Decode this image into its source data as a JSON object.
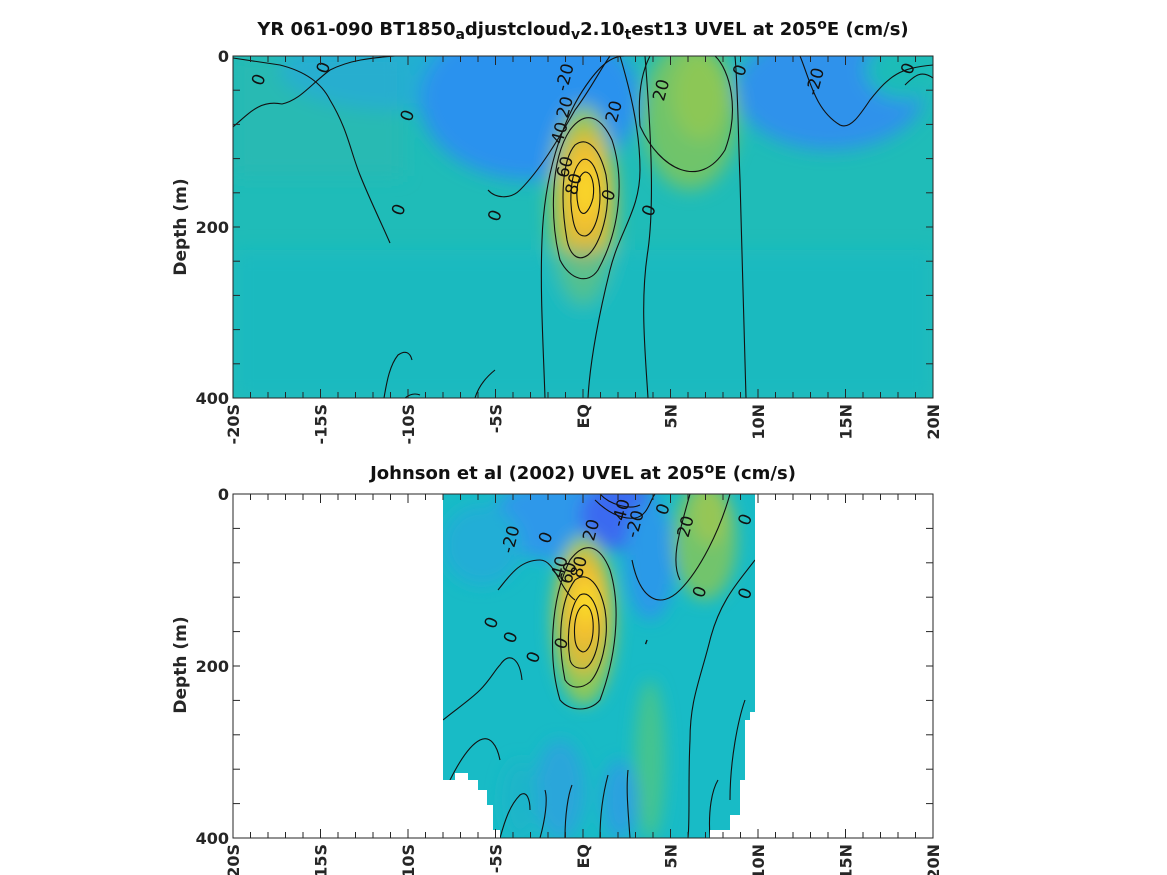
{
  "chart_data": [
    {
      "type": "heatmap",
      "title_parts": [
        {
          "text": "YR 061-090 BT1850",
          "sub": false
        },
        {
          "text": "a",
          "sub": true
        },
        {
          "text": "djustcloud",
          "sub": false
        },
        {
          "text": "v",
          "sub": true
        },
        {
          "text": "2.10",
          "sub": false
        },
        {
          "text": "t",
          "sub": true
        },
        {
          "text": "est13 UVEL at 205",
          "sub": false
        },
        {
          "text": "o",
          "sup": true
        },
        {
          "text": "E (cm/s)",
          "sub": false
        }
      ],
      "ylabel": "Depth (m)",
      "xlim": [
        -20,
        20
      ],
      "ylim": [
        0,
        400
      ],
      "y_reversed": true,
      "x_ticks": [
        -20,
        -15,
        -10,
        -5,
        0,
        5,
        10,
        15,
        20
      ],
      "x_tick_labels": [
        "-20S",
        "-15S",
        "-10S",
        "-5S",
        "EQ",
        "5N",
        "10N",
        "15N",
        "20N"
      ],
      "y_ticks": [
        0,
        200,
        400
      ],
      "y_tick_labels": [
        "0",
        "200",
        "400"
      ],
      "data_extent_x": [
        -20,
        20
      ],
      "data_extent_depth": [
        5,
        395
      ],
      "features": [
        {
          "name": "Equatorial Undercurrent core",
          "lat": 0,
          "depth": 170,
          "max_cm_s": 80
        },
        {
          "name": "North Equatorial Countercurrent",
          "lat": 6,
          "depth": 80,
          "max_cm_s": 30
        },
        {
          "name": "South Equatorial Current surface",
          "lat": -4,
          "depth": 20,
          "min_cm_s": -30
        },
        {
          "name": "North surface westward flow",
          "lat": 14,
          "depth": 30,
          "min_cm_s": -25
        }
      ],
      "contour_labels": [
        {
          "text": "0",
          "lat": -18.5,
          "depth": 28
        },
        {
          "text": "0",
          "lat": -14.8,
          "depth": 14
        },
        {
          "text": "0",
          "lat": -10.0,
          "depth": 70
        },
        {
          "text": "-20",
          "lat": -1.0,
          "depth": 25
        },
        {
          "text": "20",
          "lat": -1.0,
          "depth": 60
        },
        {
          "text": "40",
          "lat": -1.3,
          "depth": 90
        },
        {
          "text": "60",
          "lat": -1.0,
          "depth": 130
        },
        {
          "text": "80",
          "lat": -0.5,
          "depth": 150
        },
        {
          "text": "20",
          "lat": 1.8,
          "depth": 65
        },
        {
          "text": "20",
          "lat": 4.5,
          "depth": 40
        },
        {
          "text": "0",
          "lat": 9.0,
          "depth": 17
        },
        {
          "text": "-20",
          "lat": 13.3,
          "depth": 30
        },
        {
          "text": "0",
          "lat": 18.6,
          "depth": 15
        },
        {
          "text": "0",
          "lat": -10.5,
          "depth": 180
        },
        {
          "text": "0",
          "lat": -5.0,
          "depth": 187
        },
        {
          "text": "0",
          "lat": 1.5,
          "depth": 163
        },
        {
          "text": "0",
          "lat": 3.8,
          "depth": 181
        }
      ]
    },
    {
      "type": "heatmap",
      "title_parts": [
        {
          "text": "Johnson et al (2002) UVEL at 205",
          "sub": false
        },
        {
          "text": "o",
          "sup": true
        },
        {
          "text": "E (cm/s)",
          "sub": false
        }
      ],
      "ylabel": "Depth (m)",
      "xlim": [
        -20,
        20
      ],
      "ylim": [
        0,
        400
      ],
      "y_reversed": true,
      "x_ticks": [
        -20,
        -15,
        -10,
        -5,
        0,
        5,
        10,
        15,
        20
      ],
      "x_tick_labels": [
        "-20S",
        "-15S",
        "-10S",
        "-5S",
        "EQ",
        "5N",
        "10N",
        "15N",
        "20N"
      ],
      "y_ticks": [
        0,
        200,
        400
      ],
      "y_tick_labels": [
        "0",
        "200",
        "400"
      ],
      "data_extent_x": [
        -8,
        10
      ],
      "data_extent_depth": [
        5,
        400
      ],
      "features": [
        {
          "name": "Equatorial Undercurrent core",
          "lat": 0,
          "depth": 140,
          "max_cm_s": 80
        },
        {
          "name": "North Equatorial Countercurrent",
          "lat": 7,
          "depth": 50,
          "max_cm_s": 30
        },
        {
          "name": "South Equatorial Current surface",
          "lat": 2,
          "depth": 30,
          "min_cm_s": -40
        }
      ],
      "contour_labels": [
        {
          "text": "-40",
          "lat": 2.2,
          "depth": 22
        },
        {
          "text": "-20",
          "lat": 3.0,
          "depth": 35
        },
        {
          "text": "0",
          "lat": 4.6,
          "depth": 18
        },
        {
          "text": "20",
          "lat": 5.9,
          "depth": 38
        },
        {
          "text": "0",
          "lat": 9.3,
          "depth": 30
        },
        {
          "text": "-20",
          "lat": -4.1,
          "depth": 53
        },
        {
          "text": "0",
          "lat": -2.1,
          "depth": 51
        },
        {
          "text": "20",
          "lat": 0.5,
          "depth": 42
        },
        {
          "text": "40",
          "lat": -1.3,
          "depth": 85
        },
        {
          "text": "60",
          "lat": -0.8,
          "depth": 92
        },
        {
          "text": "80",
          "lat": -0.2,
          "depth": 85
        },
        {
          "text": "0",
          "lat": 6.7,
          "depth": 114
        },
        {
          "text": "0",
          "lat": 9.3,
          "depth": 116
        },
        {
          "text": "0",
          "lat": -5.2,
          "depth": 150
        },
        {
          "text": "0",
          "lat": -4.1,
          "depth": 167
        },
        {
          "text": "0",
          "lat": -1.2,
          "depth": 174
        },
        {
          "text": "0",
          "lat": -2.8,
          "depth": 190
        },
        {
          "text": "-",
          "lat": 3.6,
          "depth": 172
        }
      ]
    }
  ],
  "colorscale": [
    "#3561f0",
    "#2f8ef0",
    "#1ab0d6",
    "#1bc3b1",
    "#40c68c",
    "#8fc65a",
    "#d2b735",
    "#f8c32e",
    "#fbe81a"
  ],
  "value_range": [
    -60,
    100
  ]
}
